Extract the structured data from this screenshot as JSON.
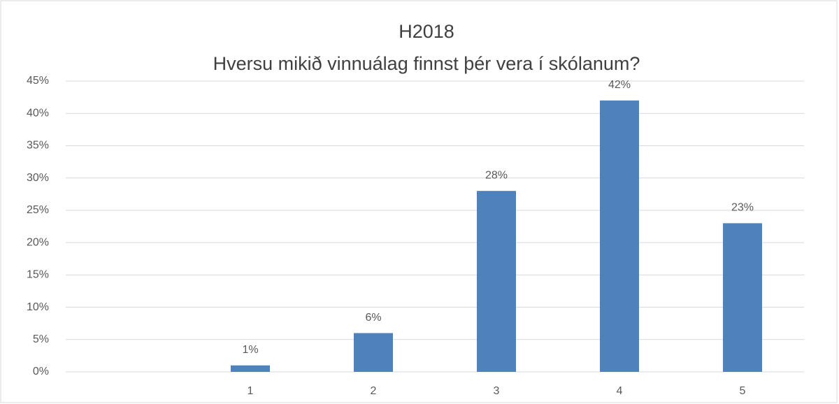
{
  "chart_data": {
    "type": "bar",
    "title": [
      "H2018",
      "Hversu mikið vinnuálag finnst þér vera í skólanum?"
    ],
    "categories": [
      null,
      "1",
      "2",
      "3",
      "4",
      "5"
    ],
    "values": [
      null,
      1,
      6,
      28,
      42,
      23
    ],
    "value_labels": [
      null,
      "1%",
      "6%",
      "28%",
      "42%",
      "23%"
    ],
    "color": "#4f81bd",
    "ylim": [
      0,
      45
    ],
    "yticks": [
      {
        "value": 0,
        "label": "0%"
      },
      {
        "value": 5,
        "label": "5%"
      },
      {
        "value": 10,
        "label": "10%"
      },
      {
        "value": 15,
        "label": "15%"
      },
      {
        "value": 20,
        "label": "20%"
      },
      {
        "value": 25,
        "label": "25%"
      },
      {
        "value": 30,
        "label": "30%"
      },
      {
        "value": 35,
        "label": "35%"
      },
      {
        "value": 40,
        "label": "40%"
      },
      {
        "value": 45,
        "label": "45%"
      }
    ],
    "grid": true
  }
}
